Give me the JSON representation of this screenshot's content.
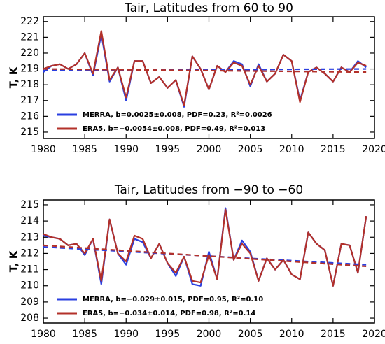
{
  "chart_data": [
    {
      "type": "line",
      "title": "Tair, Latitudes from 60 to 90",
      "y_label": "T, K",
      "x": [
        1980,
        1981,
        1982,
        1983,
        1984,
        1985,
        1986,
        1987,
        1988,
        1989,
        1990,
        1991,
        1992,
        1993,
        1994,
        1995,
        1996,
        1997,
        1998,
        1999,
        2000,
        2001,
        2002,
        2003,
        2004,
        2005,
        2006,
        2007,
        2008,
        2009,
        2010,
        2011,
        2012,
        2013,
        2014,
        2015,
        2016,
        2017,
        2018,
        2019
      ],
      "xlim": [
        1980,
        2020
      ],
      "xticks": [
        1980,
        1985,
        1990,
        1995,
        2000,
        2005,
        2010,
        2015,
        2020
      ],
      "ylim": [
        214.6,
        222.3
      ],
      "yticks": [
        215,
        216,
        217,
        218,
        219,
        220,
        221,
        222
      ],
      "legend": "lower left",
      "series": [
        {
          "name": "MERRA, b=0.0025±0.008, PDF=0.23, R²=0.0026",
          "color": "#2a3fe0",
          "values": [
            218.8,
            219.2,
            219.3,
            219.0,
            219.3,
            220.0,
            218.6,
            221.2,
            218.2,
            219.1,
            217.0,
            219.5,
            219.5,
            218.1,
            218.5,
            217.8,
            218.3,
            216.6,
            219.8,
            219.0,
            217.7,
            219.2,
            218.8,
            219.5,
            219.3,
            217.9,
            219.3,
            218.2,
            218.7,
            219.9,
            219.5,
            217.0,
            218.8,
            219.1,
            218.7,
            218.2,
            219.1,
            218.8,
            219.5,
            219.1
          ],
          "trend": [
            218.9,
            219.0
          ]
        },
        {
          "name": "ERA5, b=−0.0054±0.008, PDF=0.49, R²=0.013",
          "color": "#b3312a",
          "values": [
            219.0,
            219.2,
            219.3,
            219.0,
            219.3,
            220.0,
            218.7,
            221.4,
            218.3,
            219.1,
            217.2,
            219.5,
            219.5,
            218.1,
            218.5,
            217.8,
            218.3,
            216.7,
            219.8,
            219.0,
            217.7,
            219.2,
            218.8,
            219.4,
            219.2,
            218.0,
            219.2,
            218.2,
            218.7,
            219.9,
            219.5,
            216.9,
            218.8,
            219.1,
            218.7,
            218.2,
            219.1,
            218.8,
            219.4,
            219.2
          ],
          "trend": [
            219.0,
            218.8
          ]
        }
      ]
    },
    {
      "type": "line",
      "title": "Tair, Latitudes from −90 to −60",
      "y_label": "T, K",
      "x": [
        1980,
        1981,
        1982,
        1983,
        1984,
        1985,
        1986,
        1987,
        1988,
        1989,
        1990,
        1991,
        1992,
        1993,
        1994,
        1995,
        1996,
        1997,
        1998,
        1999,
        2000,
        2001,
        2002,
        2003,
        2004,
        2005,
        2006,
        2007,
        2008,
        2009,
        2010,
        2011,
        2012,
        2013,
        2014,
        2015,
        2016,
        2017,
        2018,
        2019
      ],
      "xlim": [
        1980,
        2020
      ],
      "xticks": [
        1980,
        1985,
        1990,
        1995,
        2000,
        2005,
        2010,
        2015,
        2020
      ],
      "ylim": [
        207.7,
        215.3
      ],
      "yticks": [
        208,
        209,
        210,
        211,
        212,
        213,
        214,
        215
      ],
      "legend": "lower left",
      "series": [
        {
          "name": "MERRA, b=−0.029±0.015, PDF=0.95, R²=0.10",
          "color": "#2a3fe0",
          "values": [
            213.1,
            213.0,
            212.9,
            212.5,
            212.6,
            211.9,
            212.9,
            210.1,
            214.1,
            212.0,
            211.3,
            212.9,
            212.7,
            211.7,
            212.6,
            211.4,
            210.6,
            211.8,
            210.1,
            210.0,
            212.1,
            210.4,
            214.8,
            211.6,
            212.8,
            212.1,
            210.3,
            211.7,
            211.0,
            211.6,
            210.7,
            210.4,
            213.3,
            212.6,
            212.2,
            210.0,
            212.6,
            212.5,
            210.8,
            214.3
          ],
          "trend": [
            212.4,
            211.3
          ]
        },
        {
          "name": "ERA5, b=−0.034±0.014, PDF=0.98, R²=0.14",
          "color": "#b3312a",
          "values": [
            213.2,
            213.0,
            212.9,
            212.5,
            212.6,
            212.0,
            212.9,
            210.3,
            214.1,
            212.0,
            211.5,
            213.1,
            212.9,
            211.7,
            212.6,
            211.4,
            210.8,
            211.8,
            210.3,
            210.2,
            211.9,
            210.4,
            214.7,
            211.6,
            212.6,
            212.0,
            210.3,
            211.7,
            211.0,
            211.6,
            210.7,
            210.4,
            213.3,
            212.6,
            212.2,
            210.0,
            212.6,
            212.5,
            210.8,
            214.3
          ],
          "trend": [
            212.5,
            211.2
          ]
        }
      ]
    }
  ]
}
